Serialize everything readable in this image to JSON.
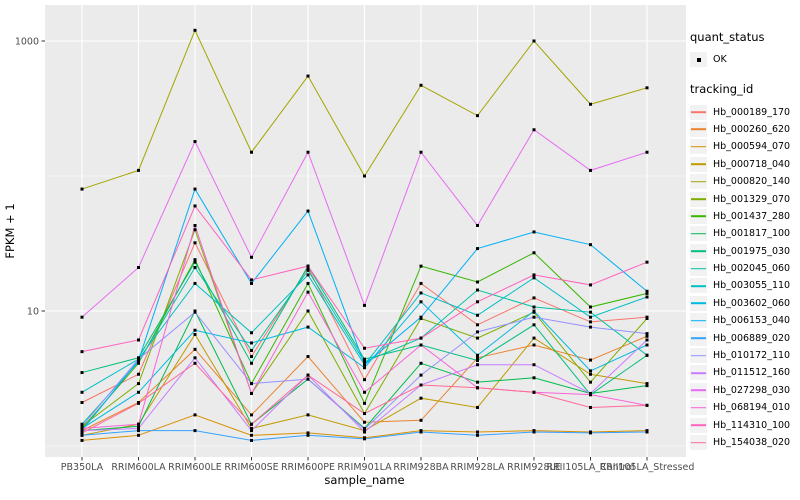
{
  "figure": {
    "panel_bg": "#EBEBEB",
    "grid_color": "#FFFFFF",
    "point_color": "#000000",
    "tick_color": "#333333",
    "tick_label_color": "#4D4D4D",
    "axis_title_color": "#000000"
  },
  "axes": {
    "x_title": "sample_name",
    "y_title": "FPKM + 1",
    "y_major_ticks": [
      {
        "label": "1000",
        "value": 1000
      },
      {
        "label": "10",
        "value": 10
      }
    ],
    "y_minor_values": [
      100,
      1
    ],
    "y_scale": "log10"
  },
  "legend": {
    "quant_title": "quant_status",
    "quant_items": [
      {
        "label": "OK"
      }
    ],
    "tracking_title": "tracking_id",
    "key_bg": "#F2F2F2"
  },
  "chart_data": {
    "type": "line",
    "title": "",
    "xlabel": "sample_name",
    "ylabel": "FPKM + 1",
    "y_scale": "log10",
    "ylim": [
      1,
      1300
    ],
    "grid": true,
    "legend_position": "right",
    "marker": "black-square",
    "categories": [
      "PB350LA",
      "RRIM600LA",
      "RRIM600LE",
      "RRIM600SE",
      "RRIM600PE",
      "RRIM901LA",
      "RRIM928BA",
      "RRIM928LA",
      "RRIM928LE",
      "RRII105LA_Control",
      "RRII105LA_Stressed"
    ],
    "series": [
      {
        "name": "Hb_000189_170",
        "color": "#F8766D",
        "values": [
          2.1,
          3.4,
          32,
          4.6,
          21,
          3.1,
          16,
          7.9,
          12.5,
          8.3,
          9.0
        ]
      },
      {
        "name": "Hb_000260_620",
        "color": "#EA8331",
        "values": [
          1.3,
          2.1,
          5.2,
          1.7,
          4.6,
          1.5,
          1.55,
          4.5,
          5.6,
          4.33,
          6.5
        ]
      },
      {
        "name": "Hb_000594_070",
        "color": "#D89000",
        "values": [
          1.1,
          1.2,
          1.7,
          1.2,
          1.25,
          1.15,
          1.3,
          1.27,
          1.3,
          1.27,
          1.3
        ]
      },
      {
        "name": "Hb_000718_040",
        "color": "#C09B00",
        "values": [
          1.2,
          1.45,
          6.7,
          1.35,
          1.7,
          1.3,
          2.26,
          1.93,
          6.3,
          3.4,
          2.9
        ]
      },
      {
        "name": "Hb_000820_140",
        "color": "#A3A500",
        "values": [
          80,
          110,
          1200,
          150,
          550,
          100,
          470,
          280,
          1000,
          340,
          450
        ]
      },
      {
        "name": "Hb_001329_070",
        "color": "#7CAE00",
        "values": [
          1.4,
          2.9,
          40,
          2.45,
          10,
          1.74,
          8.8,
          6.3,
          9.8,
          2.97,
          8.8
        ]
      },
      {
        "name": "Hb_001437_280",
        "color": "#39B600",
        "values": [
          1.35,
          4.1,
          24,
          2.9,
          16,
          2.07,
          21.5,
          16.4,
          27,
          10.7,
          13.5
        ]
      },
      {
        "name": "Hb_001817_100",
        "color": "#00BB4E",
        "values": [
          1.3,
          1.4,
          10,
          1.45,
          3.13,
          1.35,
          4.1,
          2.97,
          3.2,
          2.45,
          2.8
        ]
      },
      {
        "name": "Hb_001975_030",
        "color": "#00BF7D",
        "values": [
          3.5,
          4.5,
          23,
          4.1,
          21.5,
          4.4,
          5.6,
          4.3,
          7.9,
          2.4,
          4.7
        ]
      },
      {
        "name": "Hb_002045_060",
        "color": "#00C1A3",
        "values": [
          1.45,
          4.2,
          21,
          5.1,
          20,
          4.2,
          6.3,
          14.3,
          10.7,
          9.8,
          4.7
        ]
      },
      {
        "name": "Hb_003055_110",
        "color": "#00BFC4",
        "values": [
          2.5,
          4.4,
          16,
          6.9,
          18.5,
          4.0,
          13.6,
          9.3,
          17.6,
          9.0,
          12.7
        ]
      },
      {
        "name": "Hb_003602_060",
        "color": "#00BAE0",
        "values": [
          1.35,
          2.5,
          7.2,
          5.8,
          7.6,
          3.8,
          11.7,
          4.7,
          10,
          3.6,
          5.6
        ]
      },
      {
        "name": "Hb_006153_040",
        "color": "#00B0F6",
        "values": [
          1.3,
          4.3,
          80,
          16,
          55,
          4.0,
          9.0,
          29,
          38.5,
          31,
          14
        ]
      },
      {
        "name": "Hb_006889_020",
        "color": "#35A2FF",
        "values": [
          1.2,
          1.3,
          1.3,
          1.1,
          1.2,
          1.13,
          1.27,
          1.2,
          1.27,
          1.25,
          1.27
        ]
      },
      {
        "name": "Hb_010172_110",
        "color": "#9590FF",
        "values": [
          1.4,
          4.4,
          9.8,
          2.9,
          3.13,
          1.33,
          3.35,
          7.0,
          9.0,
          7.6,
          6.8
        ]
      },
      {
        "name": "Hb_011512_160",
        "color": "#C77CFF",
        "values": [
          1.3,
          1.35,
          4.5,
          1.3,
          3.35,
          1.27,
          2.83,
          4.0,
          4.0,
          2.45,
          6.1
        ]
      },
      {
        "name": "Hb_027298_030",
        "color": "#E76BF3",
        "values": [
          9,
          21,
          180,
          25,
          150,
          11,
          150,
          43,
          220,
          110,
          150
        ]
      },
      {
        "name": "Hb_068194_010",
        "color": "#FA62DB",
        "values": [
          1.35,
          1.45,
          43,
          2.45,
          13.8,
          2.5,
          5.6,
          2.7,
          2.5,
          2.4,
          2.0
        ]
      },
      {
        "name": "Hb_114310_100",
        "color": "#FF62BC",
        "values": [
          5,
          6.1,
          60,
          17,
          21.5,
          5.3,
          6.3,
          11.7,
          18.5,
          15.6,
          23
        ]
      },
      {
        "name": "Hb_154038_020",
        "color": "#FF6A98",
        "values": [
          1.25,
          2.07,
          4.1,
          1.45,
          3.35,
          1.74,
          2.83,
          2.7,
          2.5,
          1.93,
          2.0
        ]
      }
    ]
  }
}
